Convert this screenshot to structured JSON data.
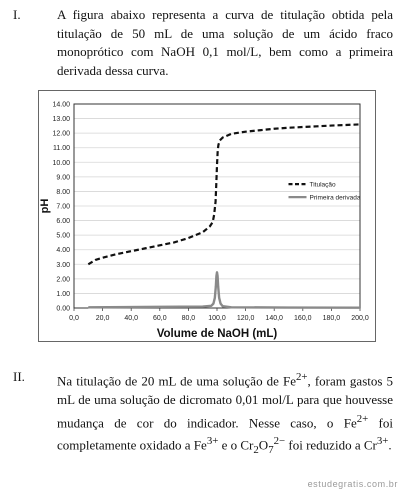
{
  "question_1": {
    "number": "I.",
    "text": "A figura abaixo representa a curva de titulação obtida pela titulação de 50 mL de uma solução de um ácido fraco monoprótico com NaOH 0,1 mol/L, bem como a primeira derivada dessa curva."
  },
  "chart_data": {
    "type": "line",
    "xlabel": "Volume de NaOH (mL)",
    "ylabel": "pH",
    "xlim": [
      0,
      200
    ],
    "ylim": [
      0,
      14
    ],
    "x_ticks": [
      "0,0",
      "20,0",
      "40,0",
      "60,0",
      "80,0",
      "100,0",
      "120,0",
      "140,0",
      "160,0",
      "180,0",
      "200,0"
    ],
    "y_ticks": [
      "0.00",
      "1.00",
      "2.00",
      "3.00",
      "4.00",
      "5.00",
      "6.00",
      "7.00",
      "8.00",
      "9.00",
      "10.00",
      "11.00",
      "12.00",
      "13.00",
      "14.00"
    ],
    "grid": true,
    "legend_position": "right",
    "series": [
      {
        "name": "Titulação",
        "style": "dashed",
        "color": "#111111",
        "x": [
          10,
          15,
          20,
          30,
          40,
          50,
          60,
          70,
          80,
          90,
          95,
          97,
          98,
          99,
          99.5,
          100,
          100.5,
          101,
          102,
          104,
          110,
          120,
          130,
          140,
          150,
          160,
          170,
          180,
          190,
          200
        ],
        "y": [
          3.0,
          3.3,
          3.45,
          3.7,
          3.9,
          4.1,
          4.3,
          4.5,
          4.8,
          5.2,
          5.6,
          5.9,
          6.4,
          7.3,
          8.5,
          9.8,
          10.8,
          11.2,
          11.5,
          11.7,
          11.95,
          12.1,
          12.2,
          12.3,
          12.37,
          12.42,
          12.47,
          12.52,
          12.56,
          12.6
        ]
      },
      {
        "name": "Primeira derivada",
        "style": "solid",
        "color": "#8a8a8a",
        "x": [
          10,
          60,
          90,
          96,
          97.5,
          98.5,
          99.2,
          99.6,
          100,
          100.4,
          100.8,
          101.5,
          102.5,
          104,
          110,
          150,
          200
        ],
        "y": [
          0.05,
          0.08,
          0.1,
          0.15,
          0.3,
          0.7,
          1.5,
          2.2,
          2.45,
          2.2,
          1.5,
          0.7,
          0.3,
          0.12,
          0.05,
          0.03,
          0.02
        ]
      }
    ]
  },
  "question_2": {
    "number": "II.",
    "text_html": "Na titulação de 20 mL de uma solução de Fe<sup>2+</sup>, foram gastos 5 mL de uma solução de dicromato 0,01 mol/L para que houvesse mudança de cor do indicador. Nesse caso, o Fe<sup>2+</sup> foi completamente oxidado a Fe<sup>3+</sup> e o Cr<sub>2</sub>O<sub>7</sub><sup>2−</sup> foi reduzido a Cr<sup>3+</sup>."
  },
  "footer": "estudegratis.com.br"
}
